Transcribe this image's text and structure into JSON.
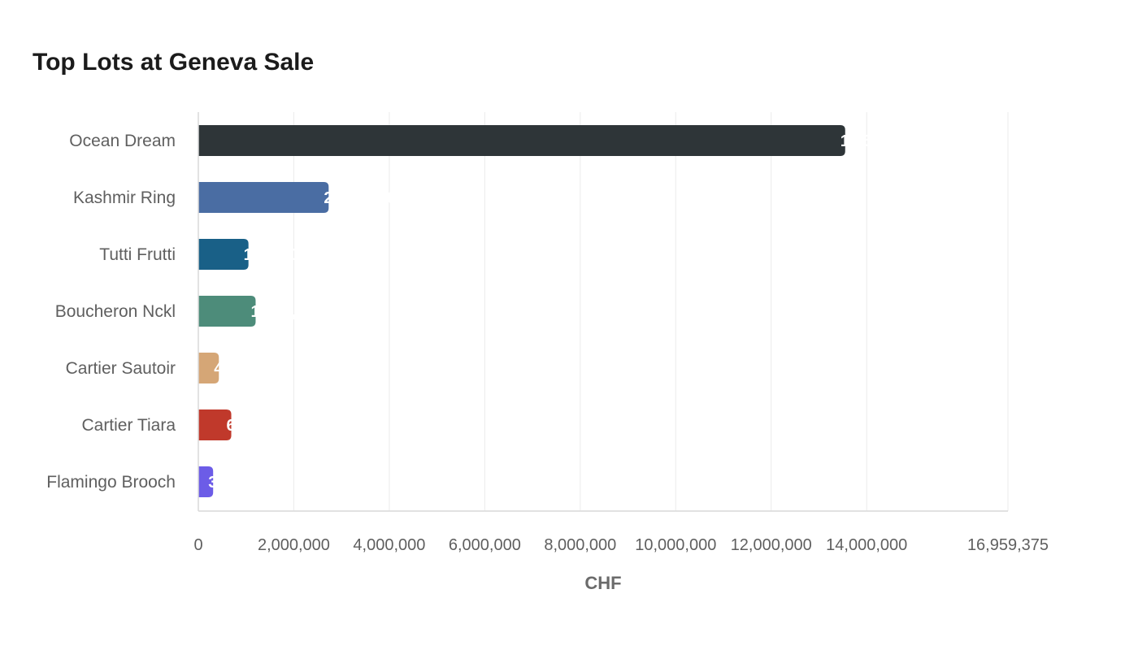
{
  "chart_data": {
    "type": "bar",
    "orientation": "horizontal",
    "title": "Top Lots at Geneva Sale",
    "xlabel": "CHF",
    "ylabel": "",
    "categories": [
      "Ocean Dream",
      "Kashmir Ring",
      "Tutti Frutti",
      "Boucheron Nckl",
      "Cartier Sautoir",
      "Cartier Tiara",
      "Flamingo Brooch"
    ],
    "values": [
      13550000,
      2730000,
      1050000,
      1200000,
      430000,
      690000,
      310000
    ],
    "colors": [
      "#2e3538",
      "#4a6da3",
      "#196087",
      "#4d8c7a",
      "#d5a676",
      "#c0392b",
      "#6c5ce7"
    ],
    "xlim": [
      0,
      16959375
    ],
    "xticks": [
      0,
      2000000,
      4000000,
      6000000,
      8000000,
      10000000,
      12000000,
      14000000,
      16959375
    ],
    "xtick_labels": [
      "0",
      "2,000,000",
      "4,000,000",
      "6,000,000",
      "8,000,000",
      "10,000,000",
      "12,000,000",
      "14,000,000",
      "16,959,375"
    ],
    "grid": true,
    "legend": "none"
  }
}
